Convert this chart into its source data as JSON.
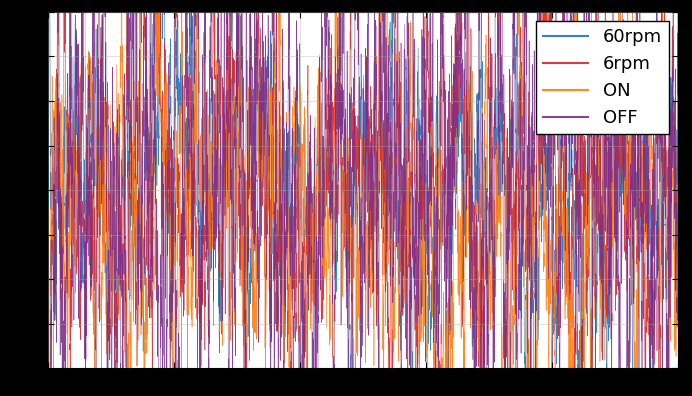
{
  "title": "",
  "legend_labels": [
    "60rpm",
    "6rpm",
    "ON",
    "OFF"
  ],
  "colors": [
    "#1f77b4",
    "#d62728",
    "#ff7f0e",
    "#7B2D8B"
  ],
  "background_color": "#ffffff",
  "legend_loc": "upper right",
  "figsize": [
    6.92,
    3.96
  ],
  "dpi": 100,
  "ylim": [
    -1.0,
    1.0
  ],
  "xlim": [
    0,
    1
  ],
  "seed": 42,
  "n_points": 5000,
  "amplitudes": [
    0.45,
    0.55,
    0.55,
    0.75
  ],
  "corr_lengths": [
    20,
    15,
    15,
    10
  ]
}
